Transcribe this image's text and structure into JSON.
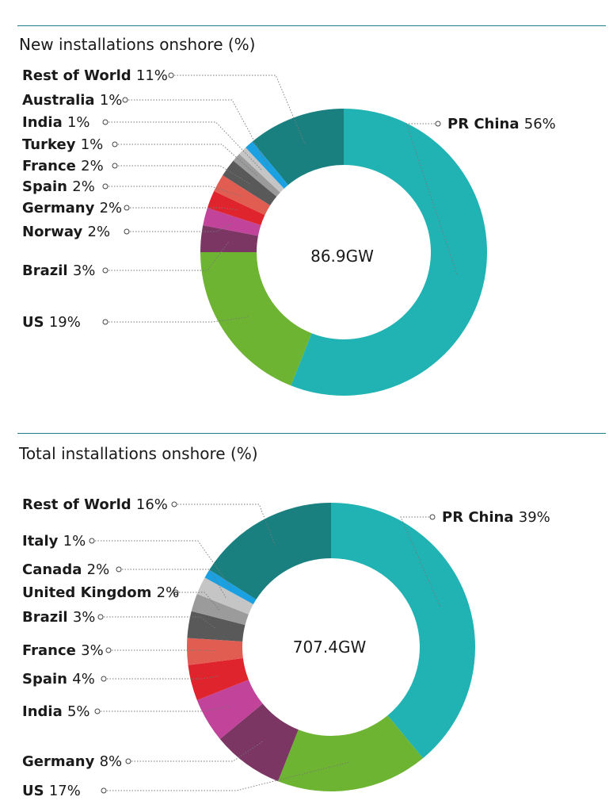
{
  "chart_data": [
    {
      "type": "donut",
      "title": "New installations onshore (%)",
      "center_label": "86.9GW",
      "slices": [
        {
          "name": "PR China",
          "value": 56,
          "label": "56%",
          "color": "#21b3b3"
        },
        {
          "name": "US",
          "value": 19,
          "label": "19%",
          "color": "#6db432"
        },
        {
          "name": "Brazil",
          "value": 3,
          "label": "3%",
          "color": "#7b3664"
        },
        {
          "name": "Norway",
          "value": 2,
          "label": "2%",
          "color": "#c2439a"
        },
        {
          "name": "Germany",
          "value": 2,
          "label": "2%",
          "color": "#e0242e"
        },
        {
          "name": "Spain",
          "value": 2,
          "label": "2%",
          "color": "#e15d52"
        },
        {
          "name": "France",
          "value": 2,
          "label": "2%",
          "color": "#595959"
        },
        {
          "name": "Turkey",
          "value": 1,
          "label": "1%",
          "color": "#9b9b9b"
        },
        {
          "name": "India",
          "value": 1,
          "label": "1%",
          "color": "#c5c5c5"
        },
        {
          "name": "Australia",
          "value": 1,
          "label": "1%",
          "color": "#1ba0e2"
        },
        {
          "name": "Rest of World",
          "value": 11,
          "label": "11%",
          "color": "#19807f"
        }
      ]
    },
    {
      "type": "donut",
      "title": "Total installations onshore (%)",
      "center_label": "707.4GW",
      "slices": [
        {
          "name": "PR China",
          "value": 39,
          "label": "39%",
          "color": "#21b3b3"
        },
        {
          "name": "US",
          "value": 17,
          "label": "17%",
          "color": "#6db432"
        },
        {
          "name": "Germany",
          "value": 8,
          "label": "8%",
          "color": "#7b3664"
        },
        {
          "name": "India",
          "value": 5,
          "label": "5%",
          "color": "#c2439a"
        },
        {
          "name": "Spain",
          "value": 4,
          "label": "4%",
          "color": "#e0242e"
        },
        {
          "name": "France",
          "value": 3,
          "label": "3%",
          "color": "#e15d52"
        },
        {
          "name": "Brazil",
          "value": 3,
          "label": "3%",
          "color": "#595959"
        },
        {
          "name": "United Kingdom",
          "value": 2,
          "label": "2%",
          "color": "#9b9b9b"
        },
        {
          "name": "Canada",
          "value": 2,
          "label": "2%",
          "color": "#c5c5c5"
        },
        {
          "name": "Italy",
          "value": 1,
          "label": "1%",
          "color": "#1ba0e2"
        },
        {
          "name": "Rest of World",
          "value": 16,
          "label": "16%",
          "color": "#19807f"
        }
      ]
    }
  ]
}
